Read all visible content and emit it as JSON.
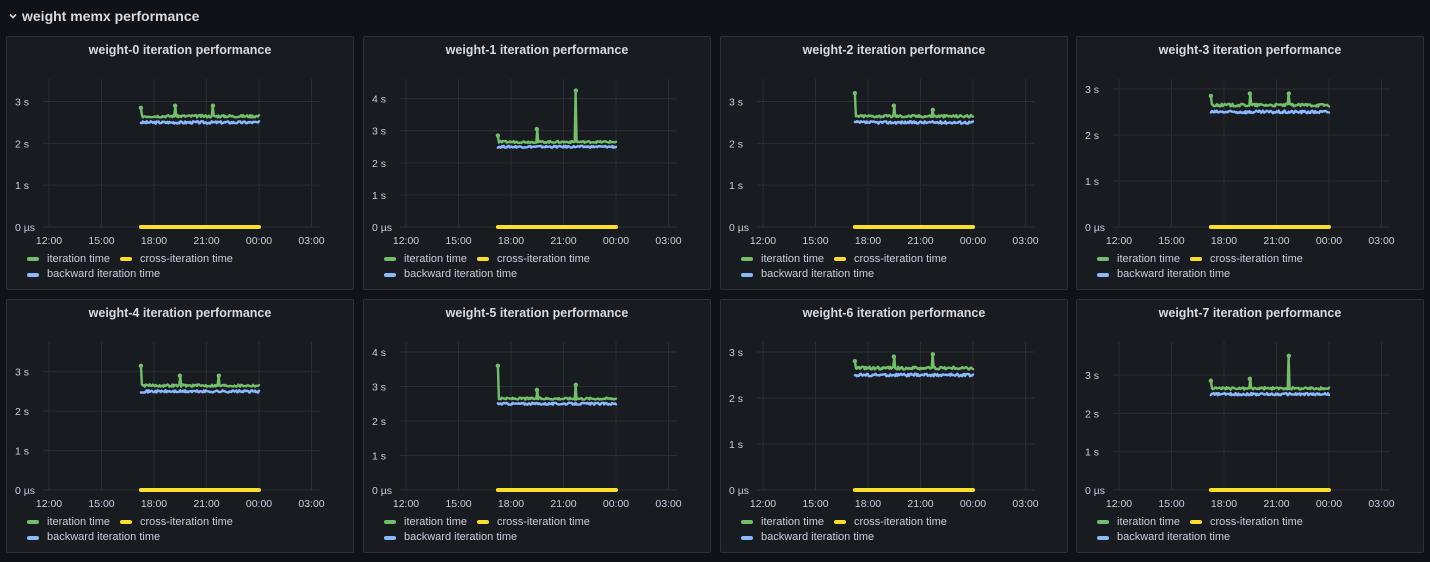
{
  "row": {
    "title": "weight memx performance",
    "icon": "chevron-down-icon"
  },
  "colors": {
    "iteration": "#73bf69",
    "cross": "#fade2a",
    "backward": "#8ab8ff",
    "grid": "#2a2d33",
    "axis": "#ccccdc"
  },
  "legend": {
    "iteration": "iteration time",
    "cross": "cross-iteration time",
    "backward": "backward iteration time"
  },
  "chart_data": [
    {
      "type": "line",
      "title": "weight-0 iteration performance",
      "x_ticks": [
        "12:00",
        "15:00",
        "18:00",
        "21:00",
        "00:00",
        "03:00"
      ],
      "y_ticks": [
        "0 µs",
        "1 s",
        "2 s",
        "3 s"
      ],
      "ylim": [
        0,
        3.3
      ],
      "x_range": [
        "17:15",
        "00:00"
      ],
      "series": [
        {
          "name": "iteration time",
          "base": 2.65,
          "spikes": [
            [
              0,
              2.85
            ],
            [
              0.29,
              2.9
            ],
            [
              0.61,
              2.9
            ]
          ]
        },
        {
          "name": "cross-iteration time",
          "base": 0.0
        },
        {
          "name": "backward iteration time",
          "base": 2.5
        }
      ]
    },
    {
      "type": "line",
      "title": "weight-1 iteration performance",
      "x_ticks": [
        "12:00",
        "15:00",
        "18:00",
        "21:00",
        "00:00",
        "03:00"
      ],
      "y_ticks": [
        "0 µs",
        "1 s",
        "2 s",
        "3 s",
        "4 s"
      ],
      "ylim": [
        0,
        4.3
      ],
      "x_range": [
        "17:15",
        "00:00"
      ],
      "series": [
        {
          "name": "iteration time",
          "base": 2.65,
          "spikes": [
            [
              0,
              2.85
            ],
            [
              0.33,
              3.05
            ],
            [
              0.66,
              4.25
            ]
          ]
        },
        {
          "name": "cross-iteration time",
          "base": 0.0
        },
        {
          "name": "backward iteration time",
          "base": 2.5
        }
      ]
    },
    {
      "type": "line",
      "title": "weight-2 iteration performance",
      "x_ticks": [
        "12:00",
        "15:00",
        "18:00",
        "21:00",
        "00:00",
        "03:00"
      ],
      "y_ticks": [
        "0 µs",
        "1 s",
        "2 s",
        "3 s"
      ],
      "ylim": [
        0,
        3.3
      ],
      "x_range": [
        "17:15",
        "00:00"
      ],
      "series": [
        {
          "name": "iteration time",
          "base": 2.65,
          "spikes": [
            [
              0,
              3.2
            ],
            [
              0.33,
              2.9
            ],
            [
              0.66,
              2.8
            ]
          ]
        },
        {
          "name": "cross-iteration time",
          "base": 0.0
        },
        {
          "name": "backward iteration time",
          "base": 2.5
        }
      ]
    },
    {
      "type": "line",
      "title": "weight-3 iteration performance",
      "x_ticks": [
        "12:00",
        "15:00",
        "18:00",
        "21:00",
        "00:00",
        "03:00"
      ],
      "y_ticks": [
        "0 µs",
        "1 s",
        "2 s",
        "3 s"
      ],
      "ylim": [
        0,
        3.0
      ],
      "x_range": [
        "17:15",
        "00:00"
      ],
      "series": [
        {
          "name": "iteration time",
          "base": 2.65,
          "spikes": [
            [
              0,
              2.85
            ],
            [
              0.33,
              2.9
            ],
            [
              0.66,
              2.9
            ]
          ]
        },
        {
          "name": "cross-iteration time",
          "base": 0.0
        },
        {
          "name": "backward iteration time",
          "base": 2.5
        }
      ]
    },
    {
      "type": "line",
      "title": "weight-4 iteration performance",
      "x_ticks": [
        "12:00",
        "15:00",
        "18:00",
        "21:00",
        "00:00",
        "03:00"
      ],
      "y_ticks": [
        "0 µs",
        "1 s",
        "2 s",
        "3 s"
      ],
      "ylim": [
        0,
        3.5
      ],
      "x_range": [
        "17:15",
        "00:00"
      ],
      "series": [
        {
          "name": "iteration time",
          "base": 2.65,
          "spikes": [
            [
              0,
              3.15
            ],
            [
              0.33,
              2.9
            ],
            [
              0.66,
              2.9
            ]
          ]
        },
        {
          "name": "cross-iteration time",
          "base": 0.0
        },
        {
          "name": "backward iteration time",
          "base": 2.5
        }
      ]
    },
    {
      "type": "line",
      "title": "weight-5 iteration performance",
      "x_ticks": [
        "12:00",
        "15:00",
        "18:00",
        "21:00",
        "00:00",
        "03:00"
      ],
      "y_ticks": [
        "0 µs",
        "1 s",
        "2 s",
        "3 s",
        "4 s"
      ],
      "ylim": [
        0,
        4.0
      ],
      "x_range": [
        "17:15",
        "00:00"
      ],
      "series": [
        {
          "name": "iteration time",
          "base": 2.65,
          "spikes": [
            [
              0,
              3.6
            ],
            [
              0.33,
              2.9
            ],
            [
              0.66,
              3.05
            ]
          ]
        },
        {
          "name": "cross-iteration time",
          "base": 0.0
        },
        {
          "name": "backward iteration time",
          "base": 2.5
        }
      ]
    },
    {
      "type": "line",
      "title": "weight-6 iteration performance",
      "x_ticks": [
        "12:00",
        "15:00",
        "18:00",
        "21:00",
        "00:00",
        "03:00"
      ],
      "y_ticks": [
        "0 µs",
        "1 s",
        "2 s",
        "3 s"
      ],
      "ylim": [
        0,
        3.0
      ],
      "x_range": [
        "17:15",
        "00:00"
      ],
      "series": [
        {
          "name": "iteration time",
          "base": 2.65,
          "spikes": [
            [
              0,
              2.8
            ],
            [
              0.33,
              2.9
            ],
            [
              0.66,
              2.95
            ]
          ]
        },
        {
          "name": "cross-iteration time",
          "base": 0.0
        },
        {
          "name": "backward iteration time",
          "base": 2.5
        }
      ]
    },
    {
      "type": "line",
      "title": "weight-7 iteration performance",
      "x_ticks": [
        "12:00",
        "15:00",
        "18:00",
        "21:00",
        "00:00",
        "03:00"
      ],
      "y_ticks": [
        "0 µs",
        "1 s",
        "2 s",
        "3 s"
      ],
      "ylim": [
        0,
        3.6
      ],
      "x_range": [
        "17:15",
        "00:00"
      ],
      "series": [
        {
          "name": "iteration time",
          "base": 2.65,
          "spikes": [
            [
              0,
              2.85
            ],
            [
              0.33,
              2.9
            ],
            [
              0.66,
              3.5
            ]
          ]
        },
        {
          "name": "cross-iteration time",
          "base": 0.0
        },
        {
          "name": "backward iteration time",
          "base": 2.5
        }
      ]
    }
  ]
}
